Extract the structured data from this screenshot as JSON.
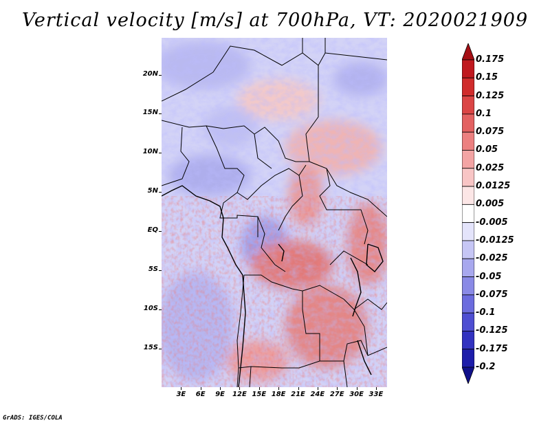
{
  "title": "Vertical velocity [m/s] at 700hPa, VT: 2020021909",
  "credit": "GrADS: IGES/COLA",
  "map": {
    "variable": "Vertical velocity",
    "units": "m/s",
    "level": "700hPa",
    "valid_time": "2020021909",
    "region": "Central Africa",
    "lat_labels": [
      "20N",
      "15N",
      "10N",
      "5N",
      "EQ",
      "5S",
      "10S",
      "15S"
    ],
    "lon_labels": [
      "3E",
      "6E",
      "9E",
      "12E",
      "15E",
      "18E",
      "21E",
      "24E",
      "27E",
      "30E",
      "33E"
    ],
    "lat_values": [
      20,
      15,
      10,
      5,
      0,
      -5,
      -10,
      -15
    ],
    "lon_values": [
      3,
      6,
      9,
      12,
      15,
      18,
      21,
      24,
      27,
      30,
      33
    ],
    "lat_range": [
      -19.9,
      24.7
    ],
    "lon_range": [
      0.0,
      34.7
    ]
  },
  "colorbar": {
    "labels": [
      "0.175",
      "0.15",
      "0.125",
      "0.1",
      "0.075",
      "0.05",
      "0.025",
      "0.0125",
      "0.005",
      "-0.005",
      "-0.0125",
      "-0.025",
      "-0.05",
      "-0.075",
      "-0.1",
      "-0.125",
      "-0.175",
      "-0.2"
    ],
    "colors": [
      "#a50f15",
      "#c0191f",
      "#d02c2c",
      "#db4545",
      "#e36161",
      "#ec8080",
      "#f3a4a4",
      "#f8c5c5",
      "#fce6e6",
      "#ffffff",
      "#e4e4fb",
      "#c6c6f5",
      "#a8a8ee",
      "#8a8ae6",
      "#6c6cde",
      "#4e4ed2",
      "#3232c0",
      "#1d1daa",
      "#10108a"
    ]
  }
}
